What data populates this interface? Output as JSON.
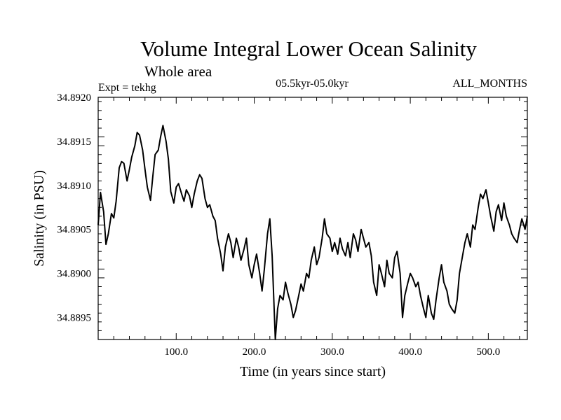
{
  "chart_data": {
    "type": "line",
    "title": "Volume Integral Lower Ocean Salinity",
    "subtitle": "Whole area",
    "experiment": "Expt = tekhg",
    "period": "05.5kyr-05.0kyr",
    "months": "ALL_MONTHS",
    "xlabel": "Time (in years since start)",
    "ylabel": "Salinity (in PSU)",
    "xlim": [
      0,
      550
    ],
    "ylim": [
      34.88925,
      34.892
    ],
    "x_ticks": [
      100,
      200,
      300,
      400,
      500
    ],
    "x_tick_labels": [
      "100.0",
      "200.0",
      "300.0",
      "400.0",
      "500.0"
    ],
    "y_ticks": [
      34.8895,
      34.89,
      34.8905,
      34.891,
      34.8915,
      34.892
    ],
    "y_tick_labels": [
      "34.8895",
      "34.8900",
      "34.8905",
      "34.8910",
      "34.8915",
      "34.8920"
    ],
    "series": [
      {
        "name": "Salinity",
        "x": [
          0,
          3,
          7,
          10,
          13,
          17,
          20,
          23,
          27,
          30,
          33,
          37,
          40,
          43,
          47,
          50,
          53,
          57,
          60,
          63,
          67,
          70,
          73,
          77,
          80,
          83,
          87,
          90,
          93,
          97,
          100,
          103,
          107,
          110,
          113,
          117,
          120,
          123,
          127,
          130,
          133,
          137,
          140,
          143,
          147,
          150,
          153,
          157,
          160,
          163,
          167,
          170,
          173,
          177,
          180,
          183,
          187,
          190,
          193,
          197,
          200,
          203,
          207,
          210,
          213,
          217,
          220,
          223,
          227,
          230,
          233,
          237,
          240,
          243,
          247,
          250,
          253,
          257,
          260,
          263,
          267,
          270,
          273,
          277,
          280,
          283,
          287,
          290,
          293,
          297,
          300,
          303,
          307,
          310,
          313,
          317,
          320,
          323,
          327,
          330,
          333,
          337,
          340,
          343,
          347,
          350,
          353,
          357,
          360,
          363,
          367,
          370,
          373,
          377,
          380,
          383,
          387,
          390,
          393,
          397,
          400,
          403,
          407,
          410,
          413,
          417,
          420,
          423,
          427,
          430,
          433,
          437,
          440,
          443,
          447,
          450,
          453,
          457,
          460,
          463,
          467,
          470,
          473,
          477,
          480,
          483,
          487,
          490,
          493,
          497,
          500,
          503,
          507,
          510,
          513,
          517,
          520,
          523,
          527,
          530,
          533,
          537,
          540,
          543,
          547,
          550
        ],
        "values": [
          34.89055,
          34.89092,
          34.8907,
          34.89033,
          34.89045,
          34.89068,
          34.89063,
          34.89082,
          34.8912,
          34.89127,
          34.89125,
          34.89105,
          34.89118,
          34.89132,
          34.89145,
          34.8916,
          34.89157,
          34.8914,
          34.89118,
          34.89098,
          34.89083,
          34.8911,
          34.89135,
          34.8914,
          34.89155,
          34.89168,
          34.8915,
          34.8913,
          34.89093,
          34.8908,
          34.89098,
          34.89102,
          34.8909,
          34.89082,
          34.89095,
          34.89088,
          34.89075,
          34.8909,
          34.89105,
          34.89112,
          34.89108,
          34.89085,
          34.89075,
          34.89078,
          34.89065,
          34.8906,
          34.8904,
          34.89022,
          34.89003,
          34.8903,
          34.89045,
          34.89035,
          34.89018,
          34.8904,
          34.8903,
          34.89015,
          34.89028,
          34.8904,
          34.8901,
          34.88995,
          34.8901,
          34.89022,
          34.89,
          34.8898,
          34.89005,
          34.89045,
          34.89062,
          34.8902,
          34.88925,
          34.8896,
          34.88975,
          34.8897,
          34.8899,
          34.88978,
          34.88965,
          34.8895,
          34.88958,
          34.88975,
          34.88988,
          34.8898,
          34.89,
          34.88995,
          34.89015,
          34.8903,
          34.8901,
          34.89018,
          34.8904,
          34.89062,
          34.89045,
          34.8904,
          34.89025,
          34.89035,
          34.89022,
          34.8904,
          34.89028,
          34.8902,
          34.89035,
          34.89018,
          34.89045,
          34.89038,
          34.89025,
          34.8905,
          34.8904,
          34.8903,
          34.89035,
          34.8902,
          34.8899,
          34.88975,
          34.8901,
          34.89,
          34.88985,
          34.89015,
          34.89,
          34.88995,
          34.89018,
          34.89025,
          34.89,
          34.8895,
          34.88975,
          34.8899,
          34.89,
          34.88995,
          34.88985,
          34.8899,
          34.88975,
          34.8896,
          34.8895,
          34.88975,
          34.88955,
          34.88948,
          34.8897,
          34.88995,
          34.8901,
          34.8899,
          34.8898,
          34.88965,
          34.8896,
          34.88955,
          34.8897,
          34.89,
          34.8902,
          34.89035,
          34.89045,
          34.8903,
          34.89055,
          34.8905,
          34.89075,
          34.8909,
          34.89085,
          34.89095,
          34.8908,
          34.89065,
          34.89048,
          34.8907,
          34.89078,
          34.8906,
          34.8908,
          34.89065,
          34.89055,
          34.89045,
          34.8904,
          34.89035,
          34.8905,
          34.89062,
          34.8905,
          34.89065
        ]
      }
    ]
  }
}
